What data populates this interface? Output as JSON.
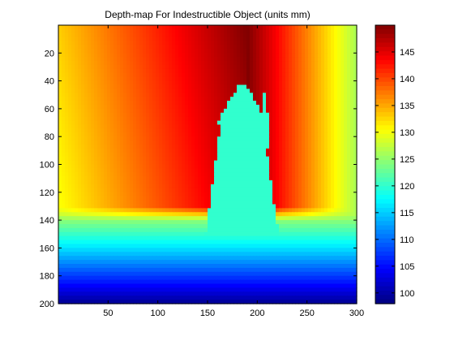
{
  "chart_data": {
    "type": "heatmap",
    "title": "Depth-map For Indestructible Object (units mm)",
    "xlabel": "",
    "ylabel": "",
    "colormap": "jet",
    "x_axis": {
      "range": [
        0,
        300
      ],
      "ticks": [
        50,
        100,
        150,
        200,
        250,
        300
      ]
    },
    "y_axis": {
      "range": [
        0,
        200
      ],
      "reversed": true,
      "ticks": [
        20,
        40,
        60,
        80,
        100,
        120,
        140,
        160,
        180,
        200
      ]
    },
    "colorbar": {
      "range": [
        98,
        150
      ],
      "ticks": [
        100,
        105,
        110,
        115,
        120,
        125,
        130,
        135,
        140,
        145
      ]
    },
    "regions": [
      {
        "name": "back-wall",
        "description": "depth rises from ~133 at x=0 to ~150 near x=190, then falls to ~126 at x=300",
        "y_range": [
          0,
          140
        ]
      },
      {
        "name": "floor",
        "description": "depth decreases from ~128 at y=135 to ~99 at y=200",
        "y_range": [
          135,
          200
        ]
      },
      {
        "name": "object",
        "description": "tapered object",
        "depth": 120,
        "x_range": [
          148,
          222
        ],
        "y_range": [
          43,
          152
        ]
      }
    ]
  }
}
